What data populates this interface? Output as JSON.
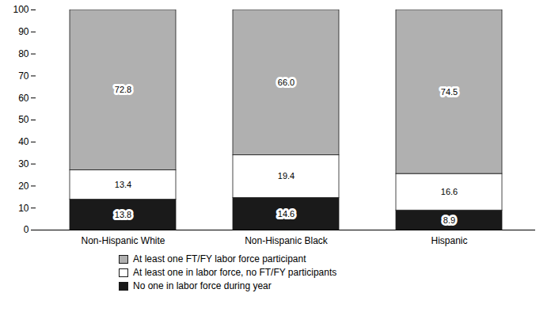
{
  "chart_data": {
    "type": "bar",
    "stacked": true,
    "data_labels": true,
    "grid": false,
    "legend": "bottom",
    "categories": [
      "Non-Hispanic White",
      "Non-Hispanic Black",
      "Hispanic"
    ],
    "series": [
      {
        "name": "No one in labor force during year",
        "color": "#1a1a1a",
        "values": [
          13.8,
          14.6,
          8.9
        ],
        "value_labels": [
          "13.8",
          "14.6",
          "8.9"
        ]
      },
      {
        "name": "At least one in labor force, no FT/FY participants",
        "color": "#ffffff",
        "values": [
          13.4,
          19.4,
          16.6
        ],
        "value_labels": [
          "13.4",
          "19.4",
          "16.6"
        ]
      },
      {
        "name": "At least one FT/FY labor force participant",
        "color": "#b0b0b0",
        "values": [
          72.8,
          66.0,
          74.5
        ],
        "value_labels": [
          "72.8",
          "66.0",
          "74.5"
        ]
      }
    ],
    "ylim": [
      0,
      100
    ],
    "yticks": [
      0,
      10,
      20,
      30,
      40,
      50,
      60,
      70,
      80,
      90,
      100
    ]
  }
}
